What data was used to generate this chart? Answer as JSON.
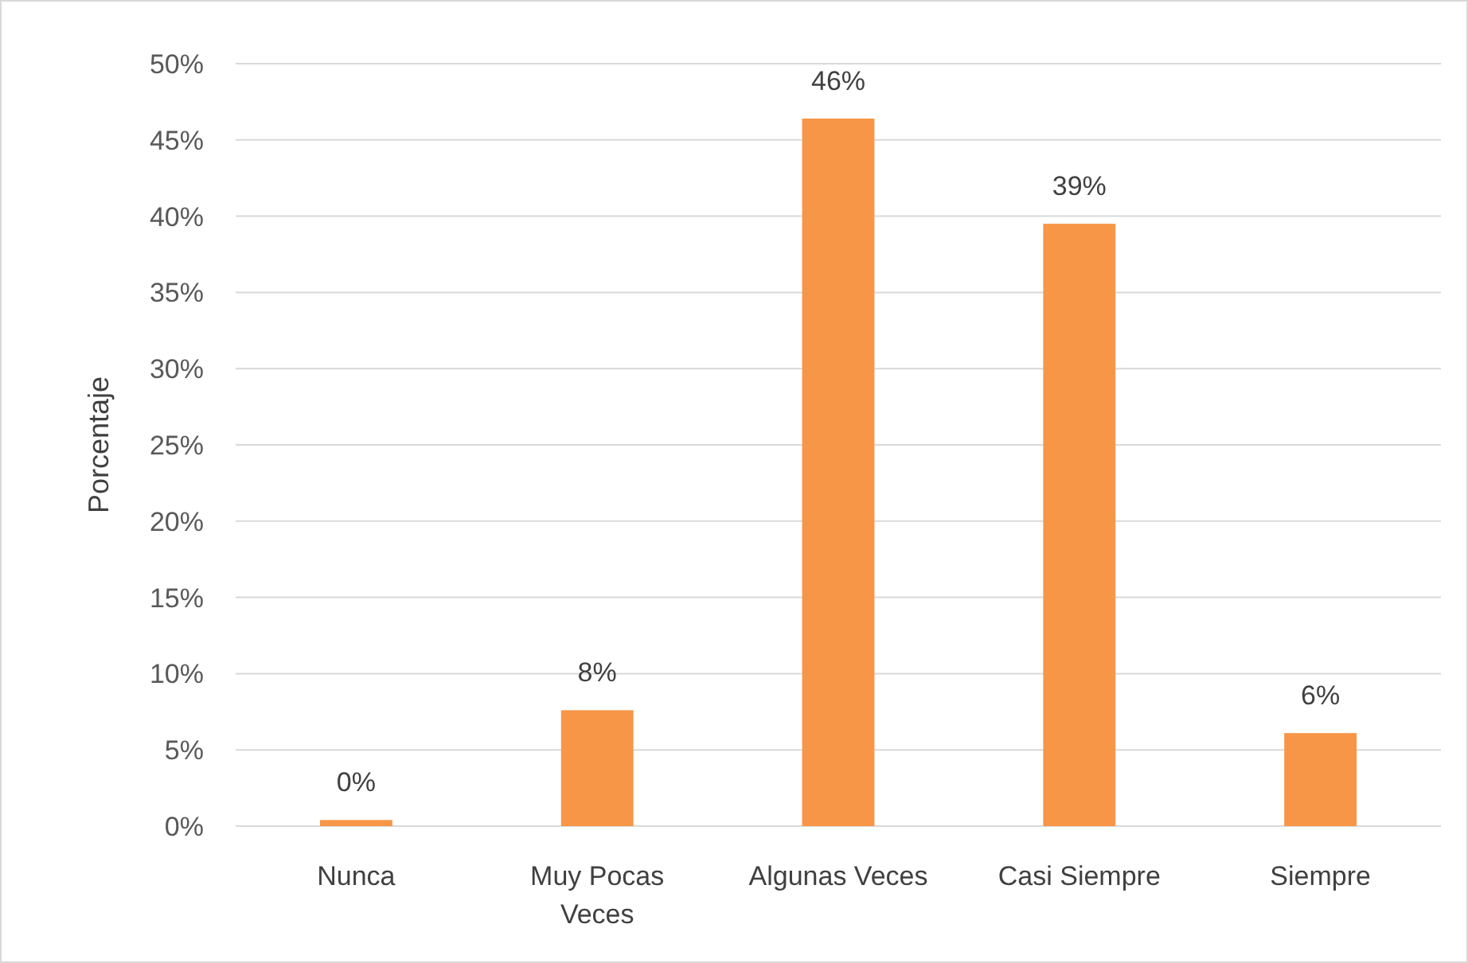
{
  "chart_data": {
    "type": "bar",
    "ylabel": "Porcentaje",
    "categories": [
      "Nunca",
      "Muy Pocas Veces",
      "Algunas Veces",
      "Casi Siempre",
      "Siempre"
    ],
    "values": [
      0.4,
      7.6,
      46.4,
      39.5,
      6.1
    ],
    "value_labels": [
      "0%",
      "8%",
      "46%",
      "39%",
      "6%"
    ],
    "color": "#f79646",
    "ylim": [
      0,
      50
    ],
    "yticks": [
      {
        "value": 0,
        "label": "0%"
      },
      {
        "value": 5,
        "label": "5%"
      },
      {
        "value": 10,
        "label": "10%"
      },
      {
        "value": 15,
        "label": "15%"
      },
      {
        "value": 20,
        "label": "20%"
      },
      {
        "value": 25,
        "label": "25%"
      },
      {
        "value": 30,
        "label": "30%"
      },
      {
        "value": 35,
        "label": "35%"
      },
      {
        "value": 40,
        "label": "40%"
      },
      {
        "value": 45,
        "label": "45%"
      },
      {
        "value": 50,
        "label": "50%"
      }
    ],
    "grid": "y"
  }
}
